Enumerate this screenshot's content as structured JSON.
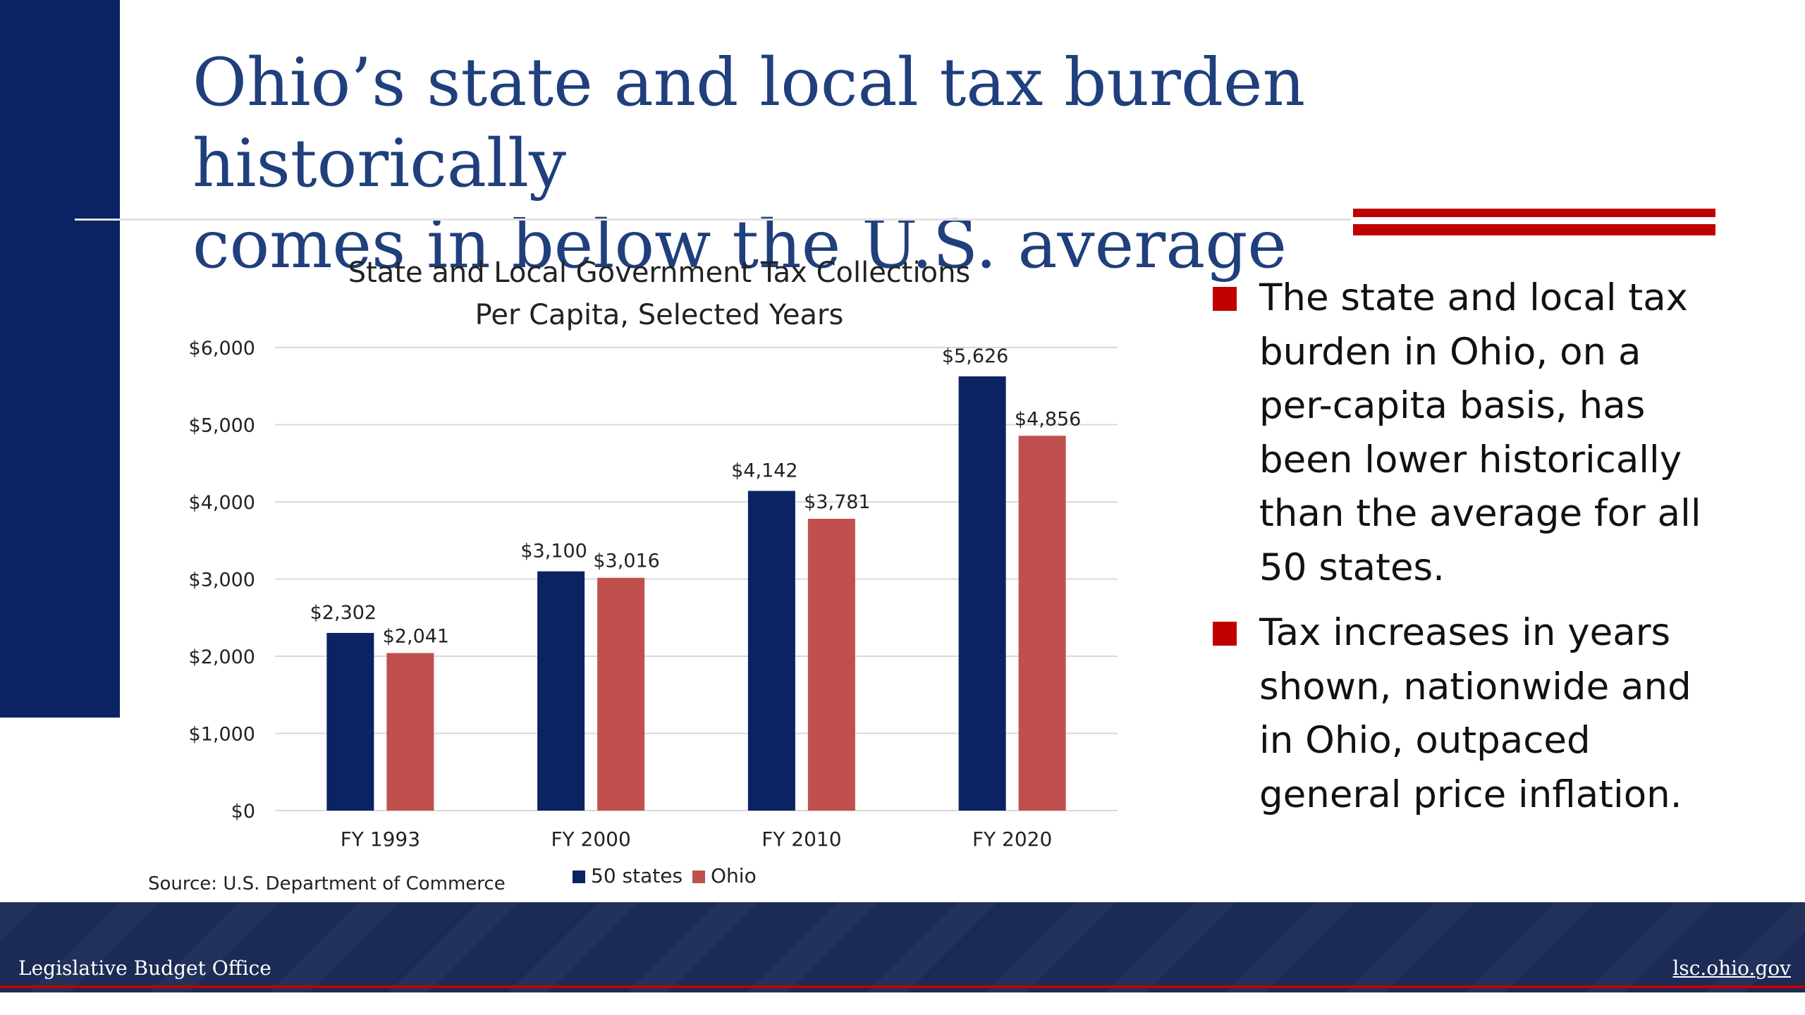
{
  "slide": {
    "title_line1": "Ohio’s state and local tax burden historically",
    "title_line2": "comes in below the U.S. average",
    "footer_left": "Legislative Budget Office",
    "footer_right": "lsc.ohio.gov",
    "source": "Source: U.S. Department of Commerce"
  },
  "bullets": [
    "The state and local tax burden in Ohio, on a per-capita basis, has been lower historically than the average for all 50 states.",
    "Tax increases in years shown, nationwide and in Ohio, outpaced general price inflation."
  ],
  "colors": {
    "navy": "#0b2263",
    "ohio_red": "#c0504d",
    "accent_red": "#c00000",
    "title_blue": "#1f3f7d"
  },
  "chart_data": {
    "type": "bar",
    "title_line1": "State and Local Government Tax Collections",
    "title_line2": "Per Capita, Selected Years",
    "categories": [
      "FY 1993",
      "FY 2000",
      "FY 2010",
      "FY 2020"
    ],
    "series": [
      {
        "name": "50 states",
        "values": [
          2302,
          3100,
          4142,
          5626
        ],
        "labels": [
          "$2,302",
          "$3,100",
          "$4,142",
          "$5,626"
        ],
        "color": "#0b2263"
      },
      {
        "name": "Ohio",
        "values": [
          2041,
          3016,
          3781,
          4856
        ],
        "labels": [
          "$2,041",
          "$3,016",
          "$3,781",
          "$4,856"
        ],
        "color": "#c0504d"
      }
    ],
    "yticks": [
      0,
      1000,
      2000,
      3000,
      4000,
      5000,
      6000
    ],
    "ytick_labels": [
      "$0",
      "$1,000",
      "$2,000",
      "$3,000",
      "$4,000",
      "$5,000",
      "$6,000"
    ],
    "ylim": [
      0,
      6000
    ],
    "grid": true,
    "legend": "bottom"
  }
}
